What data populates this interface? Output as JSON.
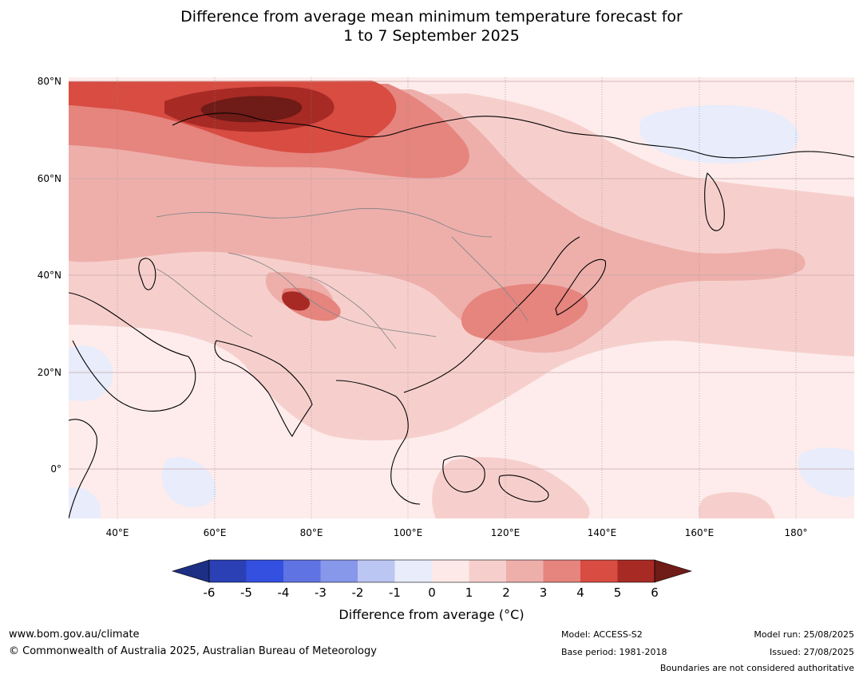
{
  "title_line1": "Difference from average mean minimum temperature forecast for",
  "title_line2": "1 to 7 September 2025",
  "map": {
    "latitude_labels": [
      "80°N",
      "60°N",
      "40°N",
      "20°N",
      "0°"
    ],
    "longitude_labels": [
      "40°E",
      "60°E",
      "80°E",
      "100°E",
      "120°E",
      "140°E",
      "160°E",
      "180°"
    ]
  },
  "colorbar": {
    "ticks": [
      "-6",
      "-5",
      "-4",
      "-3",
      "-2",
      "-1",
      "0",
      "1",
      "2",
      "3",
      "4",
      "5",
      "6"
    ],
    "colors": [
      "#1c2f82",
      "#2a40b4",
      "#3450e0",
      "#5f73e3",
      "#8797ea",
      "#bcc6f3",
      "#e8ecfb",
      "#fde9e8",
      "#f6cfcc",
      "#eeafab",
      "#e6847e",
      "#d84c42",
      "#a82a25",
      "#6f1b17"
    ],
    "label": "Difference from average (°C)"
  },
  "footer": {
    "website": "www.bom.gov.au/climate",
    "copyright": "© Commonwealth of Australia 2025, Australian Bureau of Meteorology",
    "model": "Model: ACCESS-S2",
    "base_period": "Base period: 1981-2018",
    "model_run": "Model run: 25/08/2025",
    "issued": "Issued: 27/08/2025",
    "disclaimer": "Boundaries are not considered authoritative"
  }
}
